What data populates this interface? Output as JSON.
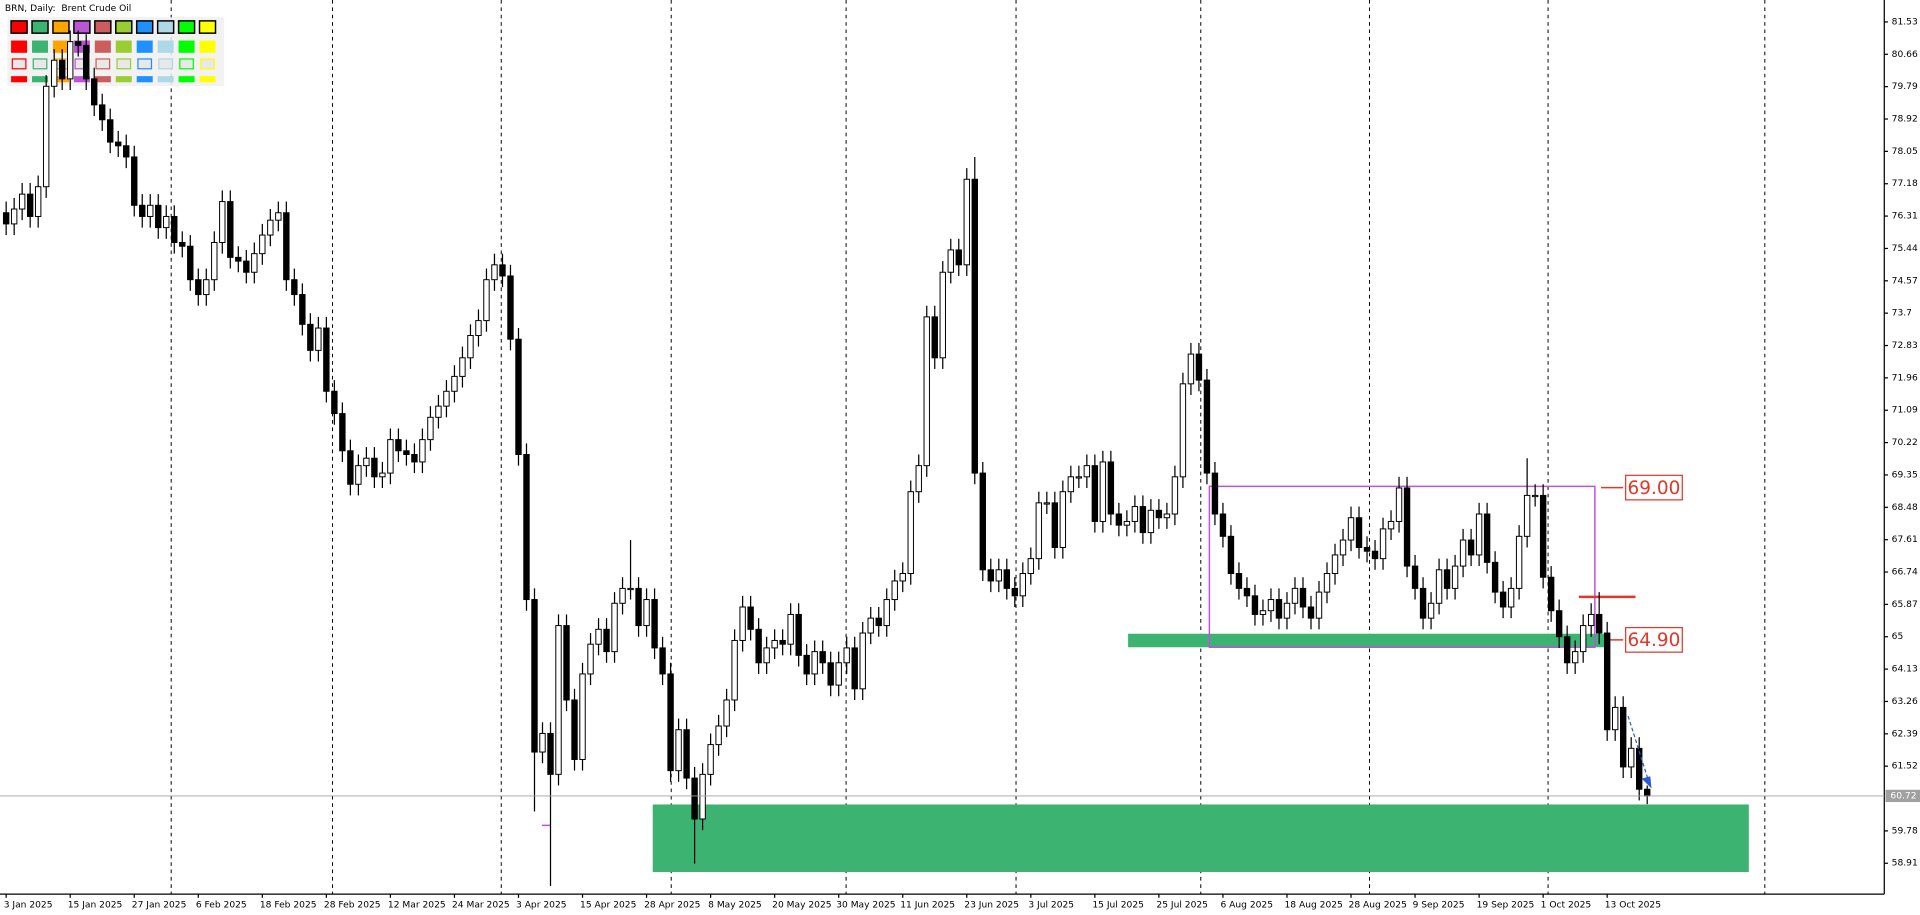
{
  "chart_data": {
    "type": "candlestick",
    "title": "BRN, Daily:  Brent Crude Oil",
    "categories": [
      "3 Jan 2025",
      null,
      null,
      null,
      null,
      null,
      null,
      null,
      "15 Jan 2025",
      null,
      null,
      null,
      null,
      null,
      null,
      null,
      "27 Jan 2025",
      null,
      null,
      null,
      null,
      null,
      null,
      null,
      "6 Feb 2025",
      null,
      null,
      null,
      null,
      null,
      null,
      null,
      "18 Feb 2025",
      null,
      null,
      null,
      null,
      null,
      null,
      null,
      "28 Feb 2025",
      null,
      null,
      null,
      null,
      null,
      null,
      null,
      "12 Mar 2025",
      null,
      null,
      null,
      null,
      null,
      null,
      null,
      "24 Mar 2025",
      null,
      null,
      null,
      null,
      null,
      null,
      null,
      "3 Apr 2025",
      null,
      null,
      null,
      null,
      null,
      null,
      null,
      "15 Apr 2025",
      null,
      null,
      null,
      null,
      null,
      null,
      null,
      "28 Apr 2025",
      null,
      null,
      null,
      null,
      null,
      null,
      null,
      "8 May 2025",
      null,
      null,
      null,
      null,
      null,
      null,
      null,
      "20 May 2025",
      null,
      null,
      null,
      null,
      null,
      null,
      null,
      "30 May 2025",
      null,
      null,
      null,
      null,
      null,
      null,
      null,
      "11 Jun 2025",
      null,
      null,
      null,
      null,
      null,
      null,
      null,
      "23 Jun 2025",
      null,
      null,
      null,
      null,
      null,
      null,
      null,
      "3 Jul 2025",
      null,
      null,
      null,
      null,
      null,
      null,
      null,
      "15 Jul 2025",
      null,
      null,
      null,
      null,
      null,
      null,
      null,
      "25 Jul 2025",
      null,
      null,
      null,
      null,
      null,
      null,
      null,
      "6 Aug 2025",
      null,
      null,
      null,
      null,
      null,
      null,
      null,
      "18 Aug 2025",
      null,
      null,
      null,
      null,
      null,
      null,
      null,
      "28 Aug 2025",
      null,
      null,
      null,
      null,
      null,
      null,
      null,
      "9 Sep 2025",
      null,
      null,
      null,
      null,
      null,
      null,
      null,
      "19 Sep 2025",
      null,
      null,
      null,
      null,
      null,
      null,
      null,
      "1 Oct 2025",
      null,
      null,
      null,
      null,
      null,
      null,
      null,
      "13 Oct 2025",
      null,
      null,
      null,
      null,
      null
    ],
    "open": [
      76.4,
      76.1,
      76.5,
      76.9,
      76.3,
      77.1,
      79.8,
      80.5,
      80.0,
      81.0,
      80.9,
      80.0,
      79.3,
      78.9,
      78.3,
      78.2,
      77.9,
      76.6,
      76.3,
      76.6,
      76.0,
      76.3,
      75.6,
      75.5,
      74.6,
      74.2,
      74.6,
      75.6,
      76.7,
      75.2,
      75.1,
      74.8,
      75.3,
      75.8,
      76.2,
      76.4,
      74.6,
      74.2,
      73.4,
      72.7,
      73.3,
      71.6,
      71.0,
      70.0,
      69.1,
      69.6,
      69.8,
      69.3,
      69.4,
      70.3,
      70.0,
      69.9,
      69.7,
      70.3,
      70.9,
      71.2,
      71.6,
      72.0,
      72.5,
      73.1,
      73.5,
      74.6,
      75.0,
      74.7,
      73.0,
      69.9,
      66.0,
      61.9,
      62.4,
      61.3,
      65.3,
      63.3,
      61.7,
      64.0,
      64.8,
      65.2,
      64.6,
      65.9,
      66.3,
      66.3,
      65.3,
      66.0,
      64.7,
      64.0,
      61.4,
      62.5,
      61.2,
      60.1,
      61.3,
      62.1,
      62.6,
      63.3,
      64.9,
      65.8,
      65.2,
      64.3,
      64.7,
      64.9,
      64.8,
      65.6,
      64.5,
      64.0,
      64.6,
      64.3,
      63.7,
      64.3,
      64.7,
      63.6,
      65.1,
      65.5,
      65.3,
      66.0,
      66.5,
      66.7,
      68.9,
      69.6,
      73.6,
      72.5,
      74.8,
      75.4,
      75.0,
      77.3,
      69.4,
      66.8,
      66.5,
      66.8,
      66.3,
      66.1,
      66.7,
      67.1,
      68.6,
      68.6,
      67.4,
      68.9,
      69.3,
      69.3,
      69.6,
      68.1,
      69.7,
      68.3,
      68.0,
      68.1,
      68.5,
      67.8,
      68.4,
      68.2,
      68.3,
      69.3,
      71.8,
      72.6,
      71.9,
      69.4,
      68.3,
      67.7,
      66.7,
      66.3,
      66.1,
      65.6,
      65.7,
      66.0,
      65.5,
      65.9,
      66.3,
      65.8,
      65.5,
      66.2,
      66.7,
      67.2,
      67.6,
      68.2,
      67.4,
      67.3,
      67.1,
      67.9,
      68.1,
      69.0,
      66.9,
      66.3,
      65.5,
      65.9,
      66.8,
      66.3,
      66.9,
      67.6,
      67.2,
      68.3,
      67.0,
      66.2,
      65.8,
      66.3,
      67.7,
      68.8,
      68.8,
      66.6,
      65.7,
      65.0,
      64.3,
      64.6,
      65.3,
      65.6,
      65.1,
      62.5,
      63.1,
      61.5,
      62.0,
      60.9
    ],
    "high": [
      76.7,
      76.8,
      77.2,
      77.2,
      77.4,
      80.1,
      80.8,
      80.8,
      81.3,
      81.3,
      81.2,
      80.3,
      79.6,
      79.2,
      78.6,
      78.5,
      78.2,
      76.9,
      76.9,
      76.9,
      76.6,
      76.6,
      75.9,
      75.8,
      74.9,
      74.9,
      75.9,
      77.0,
      77.0,
      75.5,
      75.4,
      75.6,
      76.1,
      76.5,
      76.7,
      76.7,
      74.9,
      74.5,
      73.7,
      73.6,
      73.6,
      71.9,
      71.3,
      70.3,
      69.9,
      70.1,
      70.1,
      69.7,
      70.6,
      70.6,
      70.3,
      70.2,
      70.6,
      71.2,
      71.5,
      71.9,
      72.3,
      72.8,
      73.4,
      73.8,
      74.9,
      75.3,
      75.3,
      75.0,
      73.3,
      70.2,
      66.3,
      62.7,
      62.7,
      65.6,
      65.6,
      63.6,
      64.3,
      65.1,
      65.5,
      65.5,
      66.2,
      66.6,
      67.6,
      66.6,
      66.3,
      66.3,
      65.0,
      64.3,
      62.8,
      62.8,
      61.5,
      61.6,
      62.4,
      62.9,
      63.6,
      65.2,
      66.1,
      66.1,
      65.5,
      65.0,
      65.2,
      65.2,
      65.9,
      65.9,
      64.8,
      64.9,
      64.9,
      64.6,
      64.6,
      65.0,
      65.0,
      65.4,
      65.8,
      65.8,
      66.3,
      66.8,
      67.0,
      69.2,
      69.9,
      73.9,
      73.9,
      75.1,
      75.7,
      75.7,
      77.6,
      77.9,
      69.7,
      67.1,
      67.1,
      67.1,
      66.6,
      67.0,
      67.4,
      68.9,
      68.9,
      68.9,
      69.2,
      69.6,
      69.6,
      69.9,
      69.9,
      70.0,
      70.0,
      68.6,
      68.4,
      68.8,
      68.8,
      68.7,
      68.7,
      68.6,
      69.6,
      72.1,
      72.9,
      72.9,
      72.2,
      69.7,
      68.6,
      68.0,
      67.0,
      66.6,
      66.4,
      66.0,
      66.3,
      66.3,
      66.2,
      66.6,
      66.6,
      66.1,
      66.5,
      67.0,
      67.5,
      67.9,
      68.5,
      68.5,
      67.7,
      67.6,
      68.2,
      68.4,
      69.3,
      69.3,
      67.2,
      66.6,
      66.2,
      67.1,
      67.1,
      67.2,
      67.9,
      67.9,
      68.6,
      68.6,
      67.3,
      66.5,
      66.6,
      68.0,
      69.8,
      69.1,
      69.1,
      66.9,
      66.0,
      65.3,
      64.9,
      65.6,
      65.9,
      66.2,
      65.4,
      63.4,
      63.4,
      62.3,
      62.3,
      61.0
    ],
    "low": [
      75.8,
      75.8,
      76.2,
      76.0,
      76.0,
      76.8,
      79.5,
      79.7,
      79.7,
      80.6,
      79.7,
      79.0,
      78.6,
      78.0,
      77.9,
      77.6,
      76.3,
      76.0,
      76.0,
      75.7,
      75.7,
      75.3,
      75.2,
      74.3,
      73.9,
      73.9,
      74.3,
      75.3,
      74.9,
      74.8,
      74.5,
      74.5,
      75.0,
      75.5,
      75.9,
      74.3,
      73.9,
      73.1,
      72.4,
      72.4,
      71.3,
      70.7,
      69.7,
      68.8,
      68.8,
      69.3,
      69.0,
      69.0,
      69.1,
      69.7,
      69.6,
      69.4,
      69.4,
      70.0,
      70.6,
      70.9,
      71.3,
      71.7,
      72.2,
      72.8,
      73.2,
      74.3,
      74.4,
      72.7,
      69.6,
      65.7,
      60.3,
      61.6,
      58.3,
      61.0,
      63.0,
      61.4,
      61.4,
      63.7,
      64.5,
      64.3,
      64.3,
      65.6,
      66.0,
      65.0,
      65.0,
      64.4,
      63.7,
      61.1,
      61.1,
      60.9,
      58.9,
      59.8,
      61.0,
      61.8,
      62.3,
      63.0,
      64.6,
      64.9,
      64.0,
      64.0,
      64.4,
      64.5,
      64.5,
      64.2,
      63.7,
      63.7,
      64.0,
      63.4,
      63.4,
      64.0,
      63.3,
      63.3,
      64.8,
      65.0,
      65.0,
      65.7,
      66.2,
      66.4,
      68.6,
      69.3,
      72.2,
      72.2,
      74.5,
      74.7,
      74.7,
      69.1,
      66.5,
      66.2,
      66.2,
      66.0,
      65.8,
      65.8,
      66.4,
      66.8,
      68.3,
      67.1,
      67.1,
      68.6,
      69.0,
      69.0,
      67.8,
      67.8,
      68.0,
      67.7,
      67.7,
      67.8,
      67.5,
      67.5,
      67.9,
      67.9,
      68.0,
      69.0,
      71.5,
      71.6,
      69.1,
      68.0,
      67.4,
      66.4,
      66.0,
      65.8,
      65.3,
      65.3,
      65.4,
      65.2,
      65.2,
      65.6,
      65.5,
      65.2,
      65.2,
      65.9,
      66.4,
      66.9,
      67.3,
      67.1,
      67.0,
      66.8,
      66.8,
      67.6,
      67.8,
      66.6,
      66.0,
      65.2,
      65.2,
      65.6,
      66.0,
      66.0,
      66.6,
      66.9,
      66.9,
      66.7,
      65.9,
      65.5,
      65.5,
      66.0,
      67.4,
      68.5,
      66.3,
      65.4,
      64.7,
      64.0,
      64.0,
      64.3,
      65.0,
      64.8,
      62.2,
      62.2,
      61.2,
      61.2,
      60.6,
      60.5
    ],
    "close": [
      76.1,
      76.5,
      76.9,
      76.3,
      77.1,
      79.8,
      80.5,
      80.0,
      81.0,
      80.9,
      80.0,
      79.3,
      78.9,
      78.3,
      78.2,
      77.9,
      76.6,
      76.3,
      76.6,
      76.0,
      76.3,
      75.6,
      75.5,
      74.6,
      74.2,
      74.6,
      75.6,
      76.7,
      75.2,
      75.1,
      74.8,
      75.3,
      75.8,
      76.2,
      76.4,
      74.6,
      74.2,
      73.4,
      72.7,
      73.3,
      71.6,
      71.0,
      70.0,
      69.1,
      69.6,
      69.8,
      69.3,
      69.4,
      70.3,
      70.0,
      69.9,
      69.7,
      70.3,
      70.9,
      71.2,
      71.6,
      72.0,
      72.5,
      73.1,
      73.5,
      74.6,
      75.0,
      74.7,
      73.0,
      69.9,
      66.0,
      61.9,
      62.4,
      61.3,
      65.3,
      63.3,
      61.7,
      64.0,
      64.8,
      65.2,
      64.6,
      65.9,
      66.3,
      66.3,
      65.3,
      66.0,
      64.7,
      64.0,
      61.4,
      62.5,
      61.2,
      60.1,
      61.3,
      62.1,
      62.6,
      63.3,
      64.9,
      65.8,
      65.2,
      64.3,
      64.7,
      64.9,
      64.8,
      65.6,
      64.5,
      64.0,
      64.6,
      64.3,
      63.7,
      64.3,
      64.7,
      63.6,
      65.1,
      65.5,
      65.3,
      66.0,
      66.5,
      66.7,
      68.9,
      69.6,
      73.6,
      72.5,
      74.8,
      75.4,
      75.0,
      77.3,
      69.4,
      66.8,
      66.5,
      66.8,
      66.3,
      66.1,
      66.7,
      67.1,
      68.6,
      68.6,
      67.4,
      68.9,
      69.3,
      69.3,
      69.6,
      68.1,
      69.7,
      68.3,
      68.0,
      68.1,
      68.5,
      67.8,
      68.4,
      68.2,
      68.3,
      69.3,
      71.8,
      72.6,
      71.9,
      69.4,
      68.3,
      67.7,
      66.7,
      66.3,
      66.1,
      65.6,
      65.7,
      66.0,
      65.5,
      65.9,
      66.3,
      65.8,
      65.5,
      66.2,
      66.7,
      67.2,
      67.6,
      68.2,
      67.4,
      67.3,
      67.1,
      67.9,
      68.1,
      69.0,
      66.9,
      66.3,
      65.5,
      65.9,
      66.8,
      66.3,
      66.9,
      67.6,
      67.2,
      68.3,
      67.0,
      66.2,
      65.8,
      66.3,
      67.7,
      68.8,
      68.8,
      66.6,
      65.7,
      65.0,
      64.3,
      64.6,
      65.3,
      65.6,
      65.1,
      62.5,
      63.1,
      61.5,
      62.0,
      60.9,
      60.72
    ],
    "ylim": [
      58.08,
      82.12
    ],
    "yticks": [
      58.91,
      59.78,
      61.52,
      62.39,
      63.26,
      64.13,
      65.0,
      65.87,
      66.74,
      67.61,
      68.48,
      69.35,
      70.22,
      71.09,
      71.96,
      72.83,
      73.7,
      74.57,
      75.44,
      76.31,
      77.18,
      78.05,
      78.92,
      79.79,
      80.66,
      81.53
    ],
    "current_price": 60.72,
    "annotations": [
      "69.00",
      "64.90"
    ]
  }
}
